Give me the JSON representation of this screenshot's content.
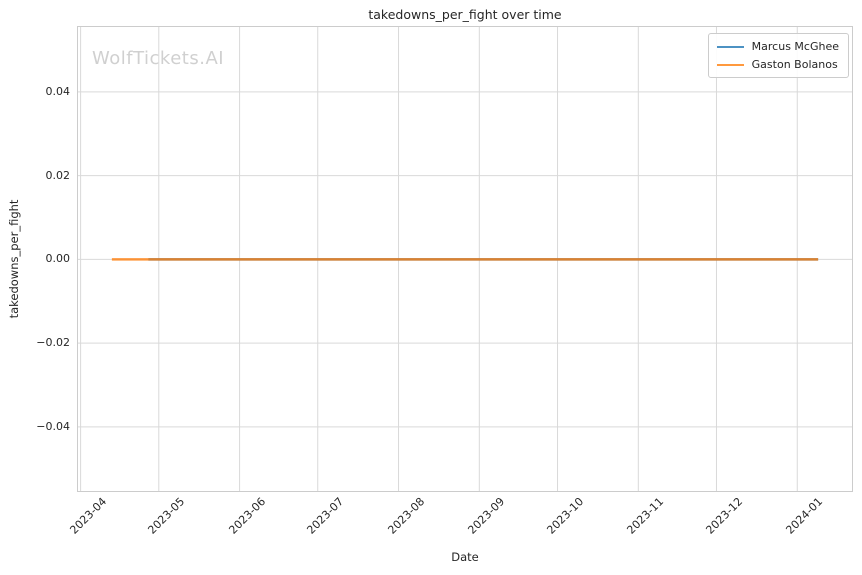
{
  "figure": {
    "title": "takedowns_per_fight over time",
    "watermark": "WolfTickets.AI",
    "xlabel": "Date",
    "ylabel": "takedowns_per_fight"
  },
  "legend": {
    "position": "upper right",
    "items": [
      {
        "label": "Marcus McGhee",
        "color": "#1f77b4"
      },
      {
        "label": "Gaston Bolanos",
        "color": "#ff7f0e"
      }
    ]
  },
  "chart_data": {
    "type": "line",
    "title": "takedowns_per_fight over time",
    "xlabel": "Date",
    "ylabel": "takedowns_per_fight",
    "x_tick_labels": [
      "2023-04",
      "2023-05",
      "2023-06",
      "2023-07",
      "2023-08",
      "2023-09",
      "2023-10",
      "2023-11",
      "2023-12",
      "2024-01"
    ],
    "y_tick_labels": [
      "0.04",
      "0.02",
      "0.00",
      "−0.02",
      "−0.04"
    ],
    "x_range": [
      "2023-03-31",
      "2024-01-22"
    ],
    "y_range": [
      -0.0553,
      0.0555
    ],
    "grid": true,
    "legend_position": "upper right",
    "line_opacity": 0.8,
    "line_width": 2.5,
    "series": [
      {
        "name": "Marcus McGhee",
        "color": "#1f77b4",
        "points": [
          [
            "2023-04-27",
            0.0
          ],
          [
            "2024-01-09",
            0.0
          ]
        ]
      },
      {
        "name": "Gaston Bolanos",
        "color": "#ff7f0e",
        "points": [
          [
            "2023-04-13",
            0.0
          ],
          [
            "2024-01-09",
            0.0
          ]
        ]
      }
    ]
  },
  "style": {
    "grid_color": "#d9d9d9",
    "spine_color": "#cccccc",
    "text_color": "#262626",
    "watermark_color": "#d0d0d0",
    "background": "#ffffff"
  }
}
